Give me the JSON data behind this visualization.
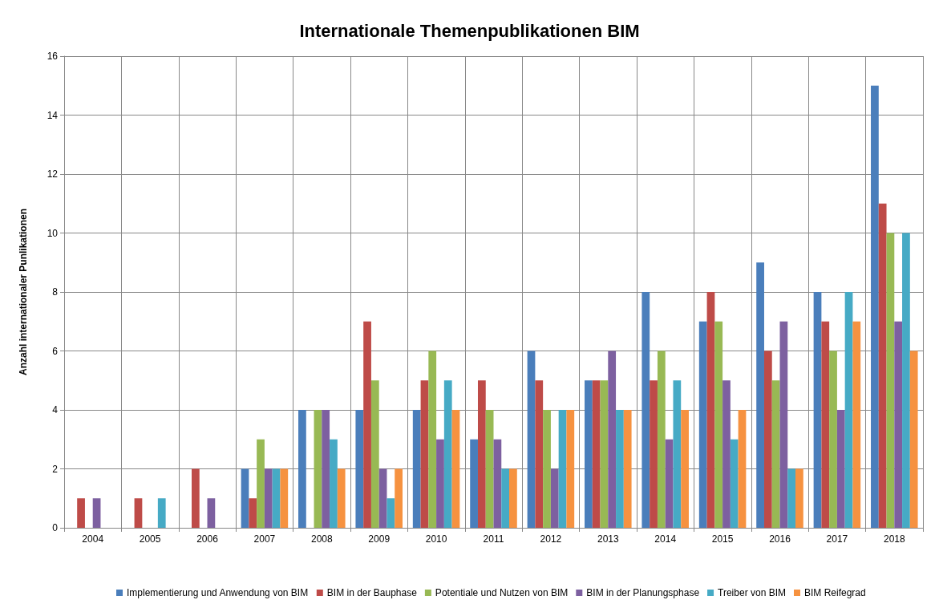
{
  "chart_data": {
    "type": "bar",
    "title": "Internationale Themenpublikationen BIM",
    "ylabel": "Anzahl internationaler Punlikationen",
    "categories": [
      "2004",
      "2005",
      "2006",
      "2007",
      "2008",
      "2009",
      "2010",
      "2011",
      "2012",
      "2013",
      "2014",
      "2015",
      "2016",
      "2017",
      "2018"
    ],
    "series": [
      {
        "name": "Implementierung und Anwendung von BIM",
        "color": "#4a7ebb",
        "values": [
          0,
          0,
          0,
          2,
          4,
          4,
          4,
          3,
          6,
          5,
          8,
          7,
          9,
          8,
          15
        ]
      },
      {
        "name": "BIM in der Bauphase",
        "color": "#be4b48",
        "values": [
          1,
          1,
          2,
          1,
          0,
          7,
          5,
          5,
          5,
          5,
          5,
          8,
          6,
          7,
          11
        ]
      },
      {
        "name": "Potentiale und Nutzen von BIM",
        "color": "#98b954",
        "values": [
          0,
          0,
          0,
          3,
          4,
          5,
          6,
          4,
          4,
          5,
          6,
          7,
          5,
          6,
          10
        ]
      },
      {
        "name": "BIM in der Planungsphase",
        "color": "#7d60a0",
        "values": [
          1,
          0,
          1,
          2,
          4,
          2,
          3,
          3,
          2,
          6,
          3,
          5,
          7,
          4,
          7
        ]
      },
      {
        "name": "Treiber von BIM",
        "color": "#46aac5",
        "values": [
          0,
          1,
          0,
          2,
          3,
          1,
          5,
          2,
          4,
          4,
          5,
          3,
          2,
          8,
          10
        ]
      },
      {
        "name": "BIM Reifegrad",
        "color": "#f69240",
        "values": [
          0,
          0,
          0,
          2,
          2,
          2,
          4,
          2,
          4,
          4,
          4,
          4,
          2,
          7,
          6
        ]
      }
    ],
    "ylim": [
      0,
      16
    ],
    "yticks": [
      0,
      2,
      4,
      6,
      8,
      10,
      12,
      14,
      16
    ],
    "grid": true,
    "legend": "bottom"
  }
}
